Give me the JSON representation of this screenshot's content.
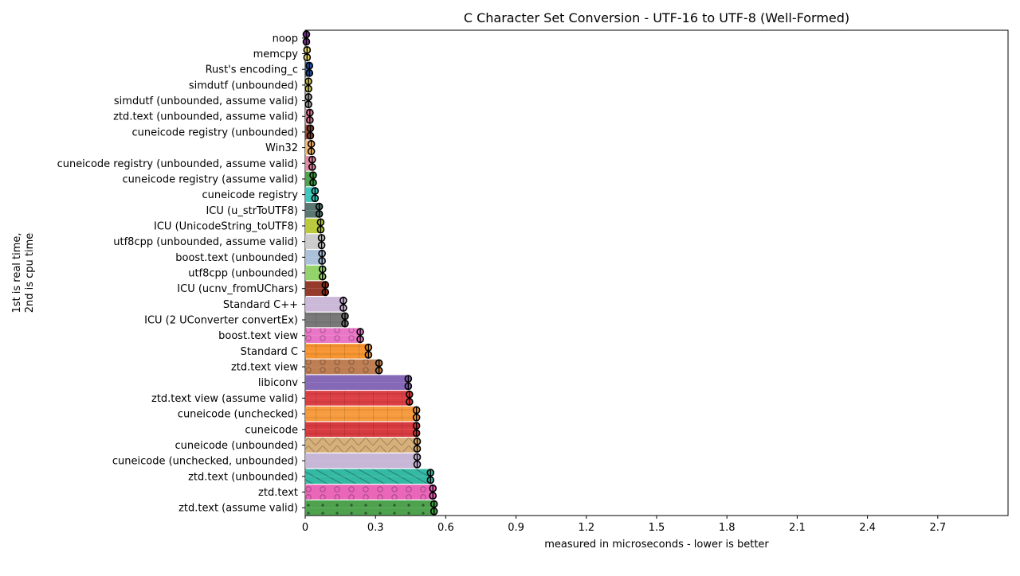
{
  "chart_data": {
    "type": "bar",
    "orientation": "horizontal",
    "title": "C Character Set Conversion - UTF-16 to UTF-8 (Well-Formed)",
    "xlabel": "measured in microseconds - lower is better",
    "ylabel_lines": [
      "1st is real time,",
      "2nd is cpu time"
    ],
    "xlim": [
      0,
      3.0
    ],
    "xticks": [
      "0",
      "0.3",
      "0.6",
      "0.9",
      "1.2",
      "1.5",
      "1.8",
      "2.1",
      "2.4",
      "2.7"
    ],
    "xtick_values": [
      0,
      0.3,
      0.6,
      0.9,
      1.2,
      1.5,
      1.8,
      2.1,
      2.4,
      2.7
    ],
    "grid": false,
    "series": [
      {
        "name": "1st is real time"
      },
      {
        "name": "2nd is cpu time"
      }
    ],
    "categories": [
      {
        "label": "noop",
        "real": 0.005,
        "cpu": 0.005,
        "color": "#7b3294",
        "pattern": "none"
      },
      {
        "label": "memcpy",
        "real": 0.008,
        "cpu": 0.008,
        "color": "#e8d66a",
        "pattern": "none"
      },
      {
        "label": "Rust's encoding_c",
        "real": 0.018,
        "cpu": 0.018,
        "color": "#1f4e9c",
        "pattern": "none"
      },
      {
        "label": "simdutf (unbounded)",
        "real": 0.014,
        "cpu": 0.014,
        "color": "#c9c24b",
        "pattern": "none"
      },
      {
        "label": "simdutf (unbounded, assume valid)",
        "real": 0.014,
        "cpu": 0.014,
        "color": "#9a9a9a",
        "pattern": "none"
      },
      {
        "label": "ztd.text (unbounded, assume valid)",
        "real": 0.02,
        "cpu": 0.02,
        "color": "#d4788f",
        "pattern": "none"
      },
      {
        "label": "cuneicode registry (unbounded)",
        "real": 0.022,
        "cpu": 0.022,
        "color": "#8c3b24",
        "pattern": "none"
      },
      {
        "label": "Win32",
        "real": 0.026,
        "cpu": 0.026,
        "color": "#f2b36b",
        "pattern": "none"
      },
      {
        "label": "cuneicode registry (unbounded, assume valid)",
        "real": 0.03,
        "cpu": 0.03,
        "color": "#e07e9c",
        "pattern": "none"
      },
      {
        "label": "cuneicode registry (assume valid)",
        "real": 0.034,
        "cpu": 0.034,
        "color": "#3e9a3e",
        "pattern": "none"
      },
      {
        "label": "cuneicode registry",
        "real": 0.042,
        "cpu": 0.042,
        "color": "#2ec4b6",
        "pattern": "none"
      },
      {
        "label": "ICU (u_strToUTF8)",
        "real": 0.06,
        "cpu": 0.06,
        "color": "#4d6b66",
        "pattern": "none"
      },
      {
        "label": "ICU (UnicodeString_toUTF8)",
        "real": 0.066,
        "cpu": 0.066,
        "color": "#b5c42c",
        "pattern": "none"
      },
      {
        "label": "utf8cpp (unbounded, assume valid)",
        "real": 0.07,
        "cpu": 0.07,
        "color": "#c8c8c8",
        "pattern": "none"
      },
      {
        "label": "boost.text (unbounded)",
        "real": 0.072,
        "cpu": 0.072,
        "color": "#a3bcd6",
        "pattern": "none"
      },
      {
        "label": "utf8cpp (unbounded)",
        "real": 0.074,
        "cpu": 0.074,
        "color": "#8bcf5e",
        "pattern": "none"
      },
      {
        "label": "ICU (ucnv_fromUChars)",
        "real": 0.086,
        "cpu": 0.086,
        "color": "#8c2a1a",
        "pattern": "none"
      },
      {
        "label": "Standard C++",
        "real": 0.163,
        "cpu": 0.163,
        "color": "#c8b3d6",
        "pattern": "none"
      },
      {
        "label": "ICU (2 UConverter convertEx)",
        "real": 0.17,
        "cpu": 0.17,
        "color": "#6e6e6e",
        "pattern": "grid"
      },
      {
        "label": "boost.text view",
        "real": 0.235,
        "cpu": 0.235,
        "color": "#e86ac2",
        "pattern": "circles"
      },
      {
        "label": "Standard C",
        "real": 0.27,
        "cpu": 0.27,
        "color": "#f58c21",
        "pattern": "grid"
      },
      {
        "label": "ztd.text view",
        "real": 0.315,
        "cpu": 0.315,
        "color": "#b87445",
        "pattern": "circles"
      },
      {
        "label": "libiconv",
        "real": 0.44,
        "cpu": 0.44,
        "color": "#7b5bb0",
        "pattern": "none"
      },
      {
        "label": "ztd.text view (assume valid)",
        "real": 0.445,
        "cpu": 0.445,
        "color": "#d93035",
        "pattern": "grid"
      },
      {
        "label": "cuneicode (unchecked)",
        "real": 0.475,
        "cpu": 0.475,
        "color": "#f6922e",
        "pattern": "grid"
      },
      {
        "label": "cuneicode",
        "real": 0.475,
        "cpu": 0.475,
        "color": "#d52a30",
        "pattern": "grid"
      },
      {
        "label": "cuneicode (unbounded)",
        "real": 0.478,
        "cpu": 0.478,
        "color": "#d2a86e",
        "pattern": "zigzag"
      },
      {
        "label": "cuneicode (unchecked, unbounded)",
        "real": 0.478,
        "cpu": 0.478,
        "color": "#c3b0d3",
        "pattern": "none"
      },
      {
        "label": "ztd.text (unbounded)",
        "real": 0.535,
        "cpu": 0.535,
        "color": "#23b39c",
        "pattern": "diagonal"
      },
      {
        "label": "ztd.text",
        "real": 0.545,
        "cpu": 0.545,
        "color": "#e859b3",
        "pattern": "circles"
      },
      {
        "label": "ztd.text (assume valid)",
        "real": 0.55,
        "cpu": 0.55,
        "color": "#3f9a3f",
        "pattern": "dots"
      }
    ]
  }
}
